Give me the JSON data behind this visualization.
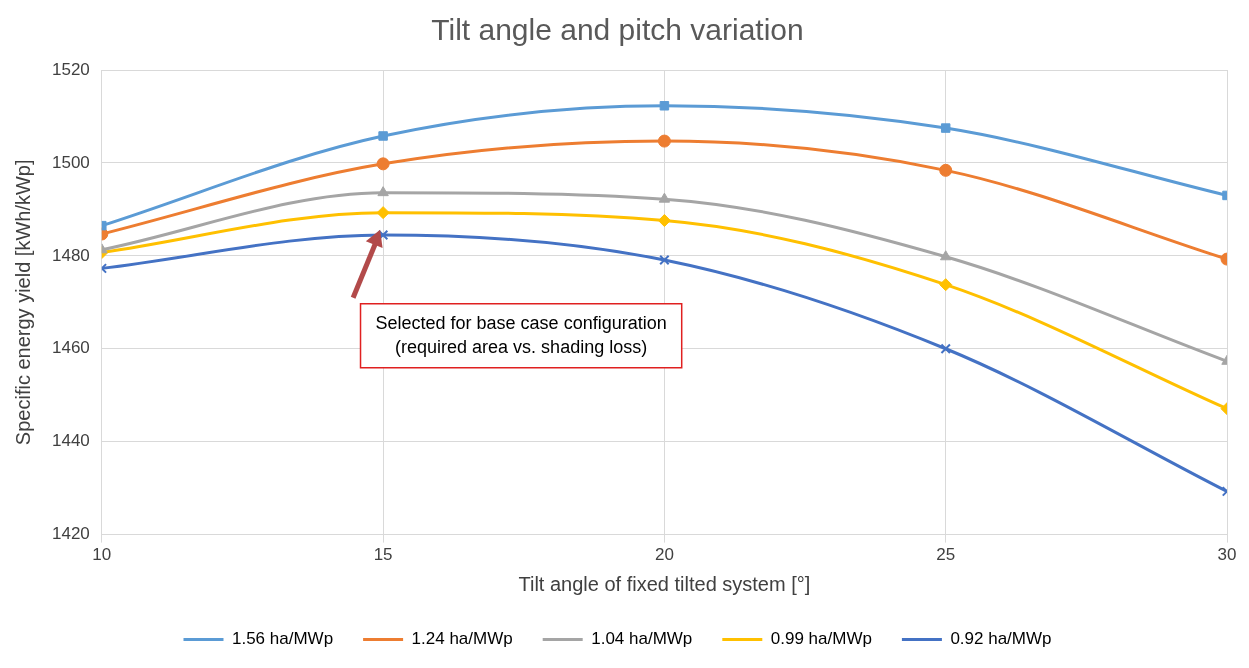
{
  "chart_data": {
    "type": "line",
    "title": "Tilt angle and pitch variation",
    "xlabel": "Tilt angle of fixed tilted system [°]",
    "ylabel": "Specific energy yield [kWh/kWp]",
    "x": [
      10,
      15,
      20,
      25,
      30
    ],
    "xlim": [
      10,
      30
    ],
    "xticks": [
      10,
      15,
      20,
      25,
      30
    ],
    "ylim": [
      1420,
      1520
    ],
    "yticks": [
      1420,
      1440,
      1460,
      1480,
      1500,
      1520
    ],
    "grid": true,
    "legend": "bottom",
    "line_style": "solid",
    "series": [
      {
        "name": "1.56 ha/MWp",
        "color": "#5b9bd5",
        "marker": "square",
        "values": [
          1486.5,
          1505.8,
          1512.3,
          1507.5,
          1493
        ]
      },
      {
        "name": "1.24 ha/MWp",
        "color": "#ed7d31",
        "marker": "circle",
        "values": [
          1484.7,
          1499.8,
          1504.7,
          1498.4,
          1479.3
        ]
      },
      {
        "name": "1.04 ha/MWp",
        "color": "#a5a5a5",
        "marker": "triangle",
        "values": [
          1481.3,
          1493.6,
          1492.2,
          1479.8,
          1457.3
        ]
      },
      {
        "name": "0.99 ha/MWp",
        "color": "#ffc000",
        "marker": "diamond",
        "values": [
          1480.7,
          1489.3,
          1487.6,
          1473.8,
          1447.1
        ]
      },
      {
        "name": "0.92 ha/MWp",
        "color": "#4472c4",
        "marker": "cross",
        "values": [
          1477.3,
          1484.5,
          1479.1,
          1460,
          1429.3
        ]
      }
    ],
    "annotations": [
      "Selected for base case configuration\n(required area vs. shading loss)"
    ]
  }
}
